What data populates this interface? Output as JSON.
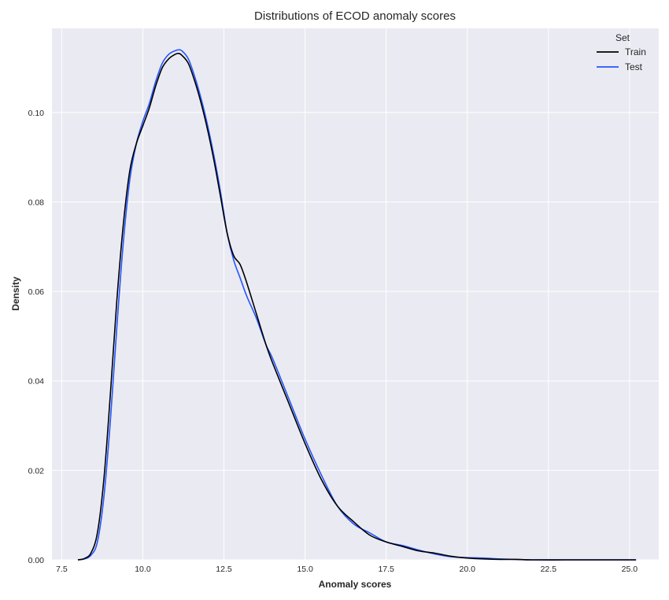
{
  "chart_data": {
    "type": "line",
    "title": "Distributions of ECOD anomaly scores",
    "xlabel": "Anomaly scores",
    "ylabel": "Density",
    "xlim": [
      7.2,
      25.9
    ],
    "ylim": [
      0,
      0.1188
    ],
    "xticks": [
      7.5,
      10.0,
      12.5,
      15.0,
      17.5,
      20.0,
      22.5,
      25.0
    ],
    "xtick_labels": [
      "7.5",
      "10.0",
      "12.5",
      "15.0",
      "17.5",
      "20.0",
      "22.5",
      "25.0"
    ],
    "yticks": [
      0.0,
      0.02,
      0.04,
      0.06,
      0.08,
      0.1
    ],
    "ytick_labels": [
      "0.00",
      "0.02",
      "0.04",
      "0.06",
      "0.08",
      "0.10"
    ],
    "grid": true,
    "legend": {
      "title": "Set",
      "position": "top-right"
    },
    "series": [
      {
        "name": "Train",
        "color": "#000000",
        "x": [
          8.0,
          8.2,
          8.4,
          8.6,
          8.8,
          9.0,
          9.2,
          9.4,
          9.6,
          9.8,
          10.0,
          10.2,
          10.4,
          10.6,
          10.8,
          11.0,
          11.1,
          11.2,
          11.4,
          11.6,
          11.8,
          12.0,
          12.2,
          12.4,
          12.6,
          12.8,
          13.0,
          13.2,
          13.5,
          13.8,
          14.0,
          14.5,
          15.0,
          15.5,
          16.0,
          16.5,
          17.0,
          17.5,
          18.0,
          18.5,
          19.0,
          19.5,
          20.0,
          20.5,
          21.0,
          21.5,
          22.0,
          23.0,
          24.0,
          25.2
        ],
        "values": [
          0.0,
          0.0003,
          0.0015,
          0.006,
          0.018,
          0.037,
          0.058,
          0.075,
          0.087,
          0.093,
          0.097,
          0.101,
          0.106,
          0.11,
          0.112,
          0.113,
          0.1132,
          0.1128,
          0.111,
          0.107,
          0.102,
          0.096,
          0.089,
          0.081,
          0.073,
          0.068,
          0.066,
          0.062,
          0.055,
          0.048,
          0.044,
          0.035,
          0.026,
          0.018,
          0.012,
          0.0085,
          0.0055,
          0.004,
          0.003,
          0.002,
          0.0015,
          0.0008,
          0.0004,
          0.0002,
          0.0001,
          0.0001,
          0.0,
          0.0,
          0.0,
          0.0
        ]
      },
      {
        "name": "Test",
        "color": "#2456ff",
        "x": [
          8.0,
          8.2,
          8.4,
          8.6,
          8.8,
          9.0,
          9.2,
          9.4,
          9.6,
          9.8,
          10.0,
          10.2,
          10.4,
          10.6,
          10.8,
          11.0,
          11.1,
          11.2,
          11.4,
          11.6,
          11.8,
          12.0,
          12.2,
          12.4,
          12.6,
          12.8,
          13.0,
          13.2,
          13.5,
          13.8,
          14.0,
          14.5,
          15.0,
          15.5,
          16.0,
          16.5,
          17.0,
          17.5,
          18.0,
          18.5,
          19.0,
          19.5,
          20.0,
          20.5,
          21.0,
          21.5,
          22.0,
          23.0,
          24.0,
          25.2
        ],
        "values": [
          0.0,
          0.0002,
          0.001,
          0.004,
          0.014,
          0.031,
          0.052,
          0.071,
          0.085,
          0.093,
          0.098,
          0.102,
          0.107,
          0.111,
          0.113,
          0.1138,
          0.114,
          0.1138,
          0.112,
          0.108,
          0.103,
          0.097,
          0.09,
          0.082,
          0.073,
          0.067,
          0.063,
          0.059,
          0.054,
          0.048,
          0.045,
          0.036,
          0.027,
          0.019,
          0.012,
          0.008,
          0.006,
          0.004,
          0.0032,
          0.0022,
          0.0013,
          0.0007,
          0.0005,
          0.0004,
          0.0002,
          0.0001,
          0.0,
          0.0,
          0.0,
          0.0
        ]
      }
    ]
  },
  "colors": {
    "plot_background": "#eaeaf2",
    "grid": "#ffffff",
    "text": "#262626"
  }
}
